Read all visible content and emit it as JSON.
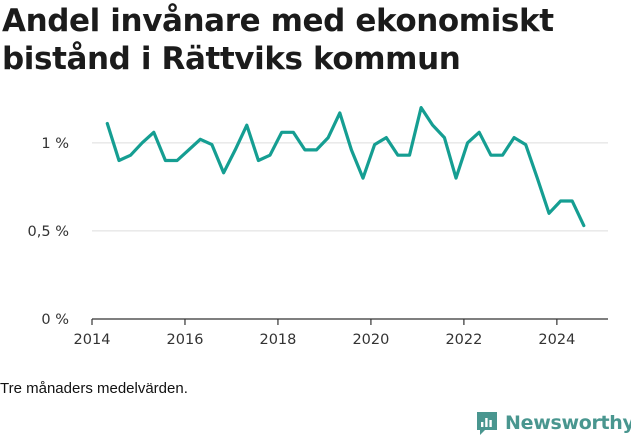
{
  "title": "Andel invånare med ekonomiskt bistånd i Rättviks kommun",
  "caption": "Tre månaders medelvärden.",
  "brand": "Newsworthy",
  "colors": {
    "line": "#159e92",
    "grid": "#dddddd",
    "axis": "#333333",
    "brand": "#49968f"
  },
  "chart_data": {
    "type": "line",
    "title": "Andel invånare med ekonomiskt bistånd i Rättviks kommun",
    "xlabel": "",
    "ylabel": "",
    "xlim": [
      2014,
      2025.1
    ],
    "ylim": [
      0,
      1.3
    ],
    "x_ticks": [
      {
        "value": 2014,
        "label": "2014"
      },
      {
        "value": 2016,
        "label": "2016"
      },
      {
        "value": 2018,
        "label": "2018"
      },
      {
        "value": 2020,
        "label": "2020"
      },
      {
        "value": 2022,
        "label": "2022"
      },
      {
        "value": 2024,
        "label": "2024"
      }
    ],
    "y_ticks": [
      {
        "value": 0,
        "label": "0 %"
      },
      {
        "value": 0.5,
        "label": "0,5 %"
      },
      {
        "value": 1,
        "label": "1 %"
      }
    ],
    "grid": "horizontal",
    "series": [
      {
        "x": [
          2014.33,
          2014.58,
          2014.83,
          2015.08,
          2015.33,
          2015.58,
          2015.83,
          2016.08,
          2016.33,
          2016.58,
          2016.83,
          2017.08,
          2017.33,
          2017.58,
          2017.83,
          2018.08,
          2018.33,
          2018.58,
          2018.83,
          2019.08,
          2019.33,
          2019.58,
          2019.83,
          2020.08,
          2020.33,
          2020.58,
          2020.83,
          2021.08,
          2021.33,
          2021.58,
          2021.83,
          2022.08,
          2022.33,
          2022.58,
          2022.83,
          2023.08,
          2023.33,
          2023.58,
          2023.83,
          2024.08,
          2024.33,
          2024.58
        ],
        "values": [
          1.11,
          0.9,
          0.93,
          1.0,
          1.06,
          0.9,
          0.9,
          0.96,
          1.02,
          0.99,
          0.83,
          0.96,
          1.1,
          0.9,
          0.93,
          1.06,
          1.06,
          0.96,
          0.96,
          1.03,
          1.17,
          0.96,
          0.8,
          0.99,
          1.03,
          0.93,
          0.93,
          1.2,
          1.1,
          1.03,
          0.8,
          1.0,
          1.06,
          0.93,
          0.93,
          1.03,
          0.99,
          0.8,
          0.6,
          0.67,
          0.67,
          0.53
        ]
      }
    ]
  }
}
